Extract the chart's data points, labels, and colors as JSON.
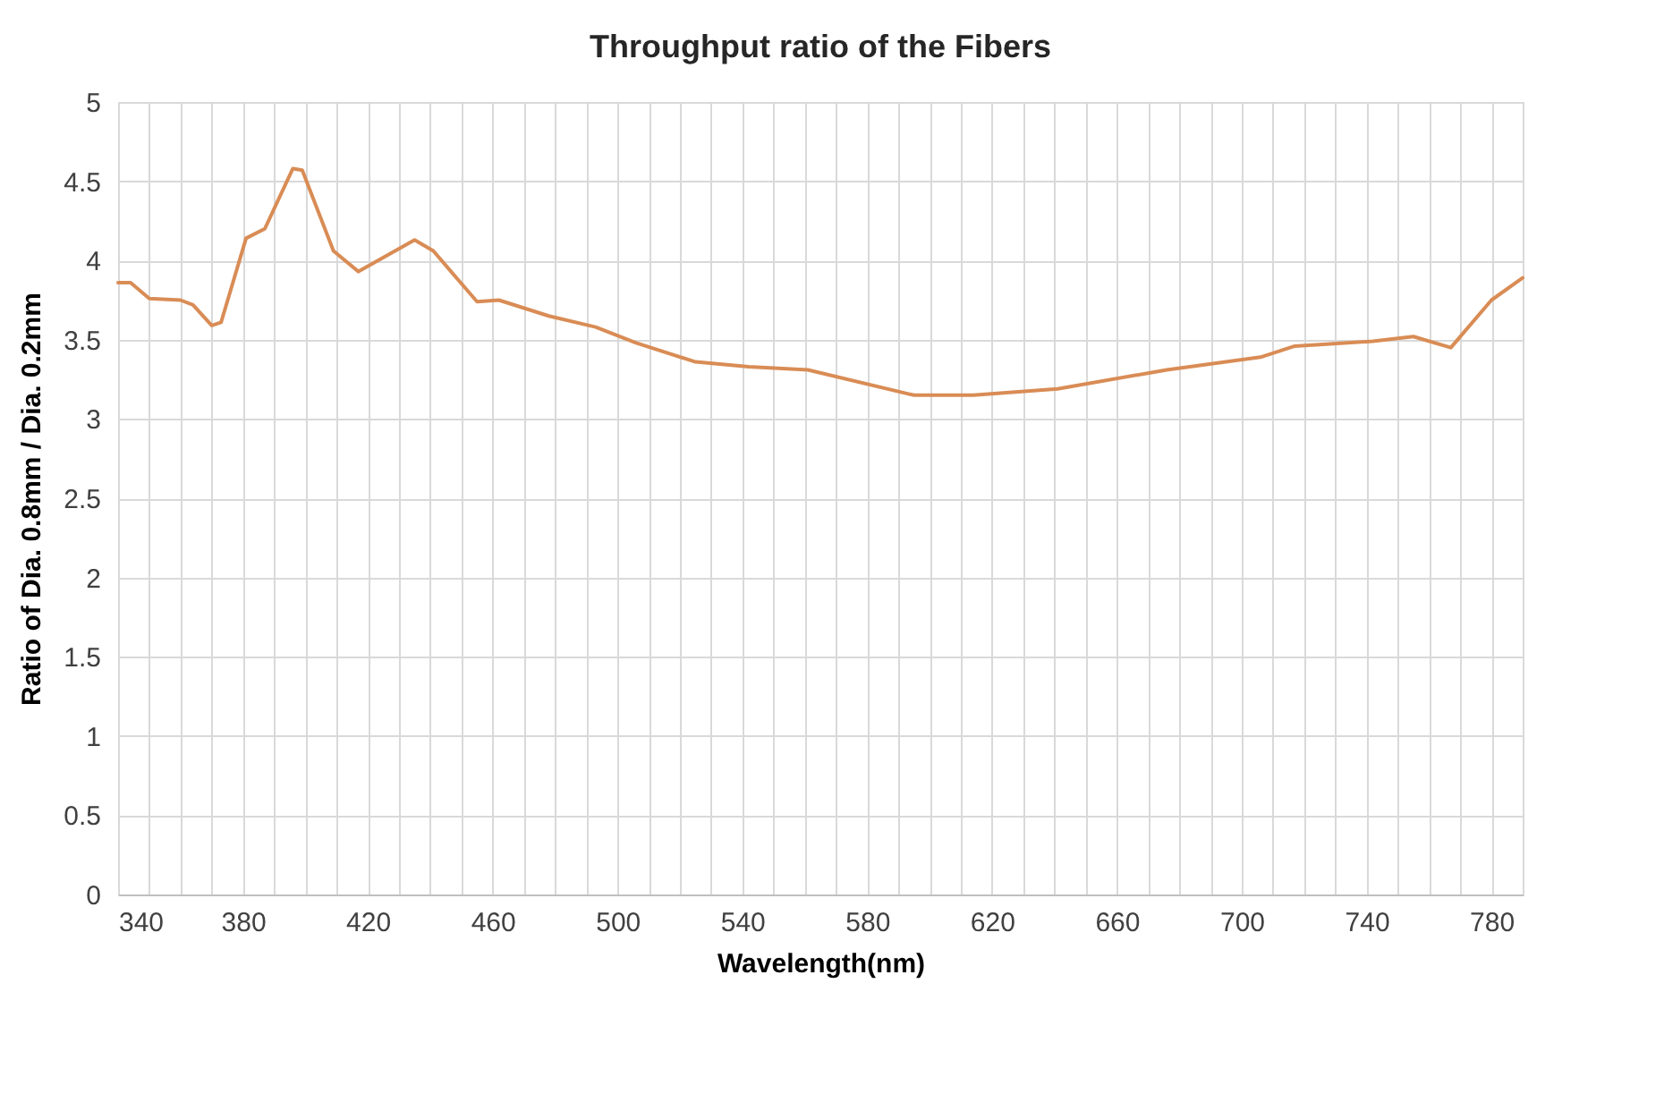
{
  "chart_data": {
    "type": "line",
    "title": "Throughput ratio of the Fibers",
    "xlabel": "Wavelength(nm)",
    "ylabel": "Ratio of Dia. 0.8mm / Dia. 0.2mm",
    "series": [
      {
        "color": "#d98c55",
        "x": [
          340,
          344,
          350,
          360,
          364,
          370,
          373,
          381,
          387,
          396,
          399,
          409,
          417,
          435,
          441,
          455,
          462,
          478,
          493,
          506,
          525,
          542,
          561,
          595,
          614,
          641,
          676,
          706,
          717,
          742,
          755,
          767,
          780,
          790
        ],
        "values": [
          3.86,
          3.86,
          3.76,
          3.75,
          3.72,
          3.59,
          3.61,
          4.14,
          4.2,
          4.58,
          4.57,
          4.06,
          3.93,
          4.13,
          4.06,
          3.74,
          3.75,
          3.65,
          3.58,
          3.48,
          3.36,
          3.33,
          3.31,
          3.15,
          3.15,
          3.19,
          3.31,
          3.39,
          3.46,
          3.49,
          3.52,
          3.45,
          3.75,
          3.89
        ]
      }
    ],
    "xlim": [
      340,
      790
    ],
    "xticks": [
      340,
      {
        "value": 350,
        "label": null
      },
      {
        "value": 360,
        "label": null
      },
      {
        "value": 370,
        "label": null
      },
      380,
      {
        "value": 390,
        "label": null
      },
      {
        "value": 400,
        "label": null
      },
      {
        "value": 410,
        "label": null
      },
      420,
      {
        "value": 430,
        "label": null
      },
      {
        "value": 440,
        "label": null
      },
      {
        "value": 450,
        "label": null
      },
      460,
      {
        "value": 470,
        "label": null
      },
      {
        "value": 480,
        "label": null
      },
      {
        "value": 490,
        "label": null
      },
      500,
      {
        "value": 510,
        "label": null
      },
      {
        "value": 520,
        "label": null
      },
      {
        "value": 530,
        "label": null
      },
      540,
      {
        "value": 550,
        "label": null
      },
      {
        "value": 560,
        "label": null
      },
      {
        "value": 570,
        "label": null
      },
      580,
      {
        "value": 590,
        "label": null
      },
      {
        "value": 600,
        "label": null
      },
      {
        "value": 610,
        "label": null
      },
      620,
      {
        "value": 630,
        "label": null
      },
      {
        "value": 640,
        "label": null
      },
      {
        "value": 650,
        "label": null
      },
      660,
      {
        "value": 670,
        "label": null
      },
      {
        "value": 680,
        "label": null
      },
      {
        "value": 690,
        "label": null
      },
      700,
      {
        "value": 710,
        "label": null
      },
      {
        "value": 720,
        "label": null
      },
      {
        "value": 730,
        "label": null
      },
      740,
      {
        "value": 750,
        "label": null
      },
      {
        "value": 760,
        "label": null
      },
      {
        "value": 770,
        "label": null
      },
      780,
      {
        "value": 790,
        "label": null
      }
    ],
    "ylim": [
      0,
      5
    ],
    "yticks": [
      0,
      0.5,
      1,
      1.5,
      2,
      2.5,
      3,
      3.5,
      4,
      4.5,
      5
    ],
    "grid": true,
    "marker": "none",
    "line_style": "solid",
    "legend": false
  }
}
